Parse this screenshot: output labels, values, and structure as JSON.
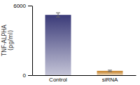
{
  "chart_data": {
    "type": "bar",
    "categories": [
      "Control",
      "siRNA"
    ],
    "values": [
      5200,
      370
    ],
    "errors": [
      180,
      60
    ],
    "colors": [
      "#3a3a78",
      "#c07818"
    ],
    "ylabel": "TNF-ALPHA\n(pg/ml)",
    "ylim": [
      0,
      6000
    ],
    "yticks": [
      0,
      6000
    ],
    "grid": false
  }
}
